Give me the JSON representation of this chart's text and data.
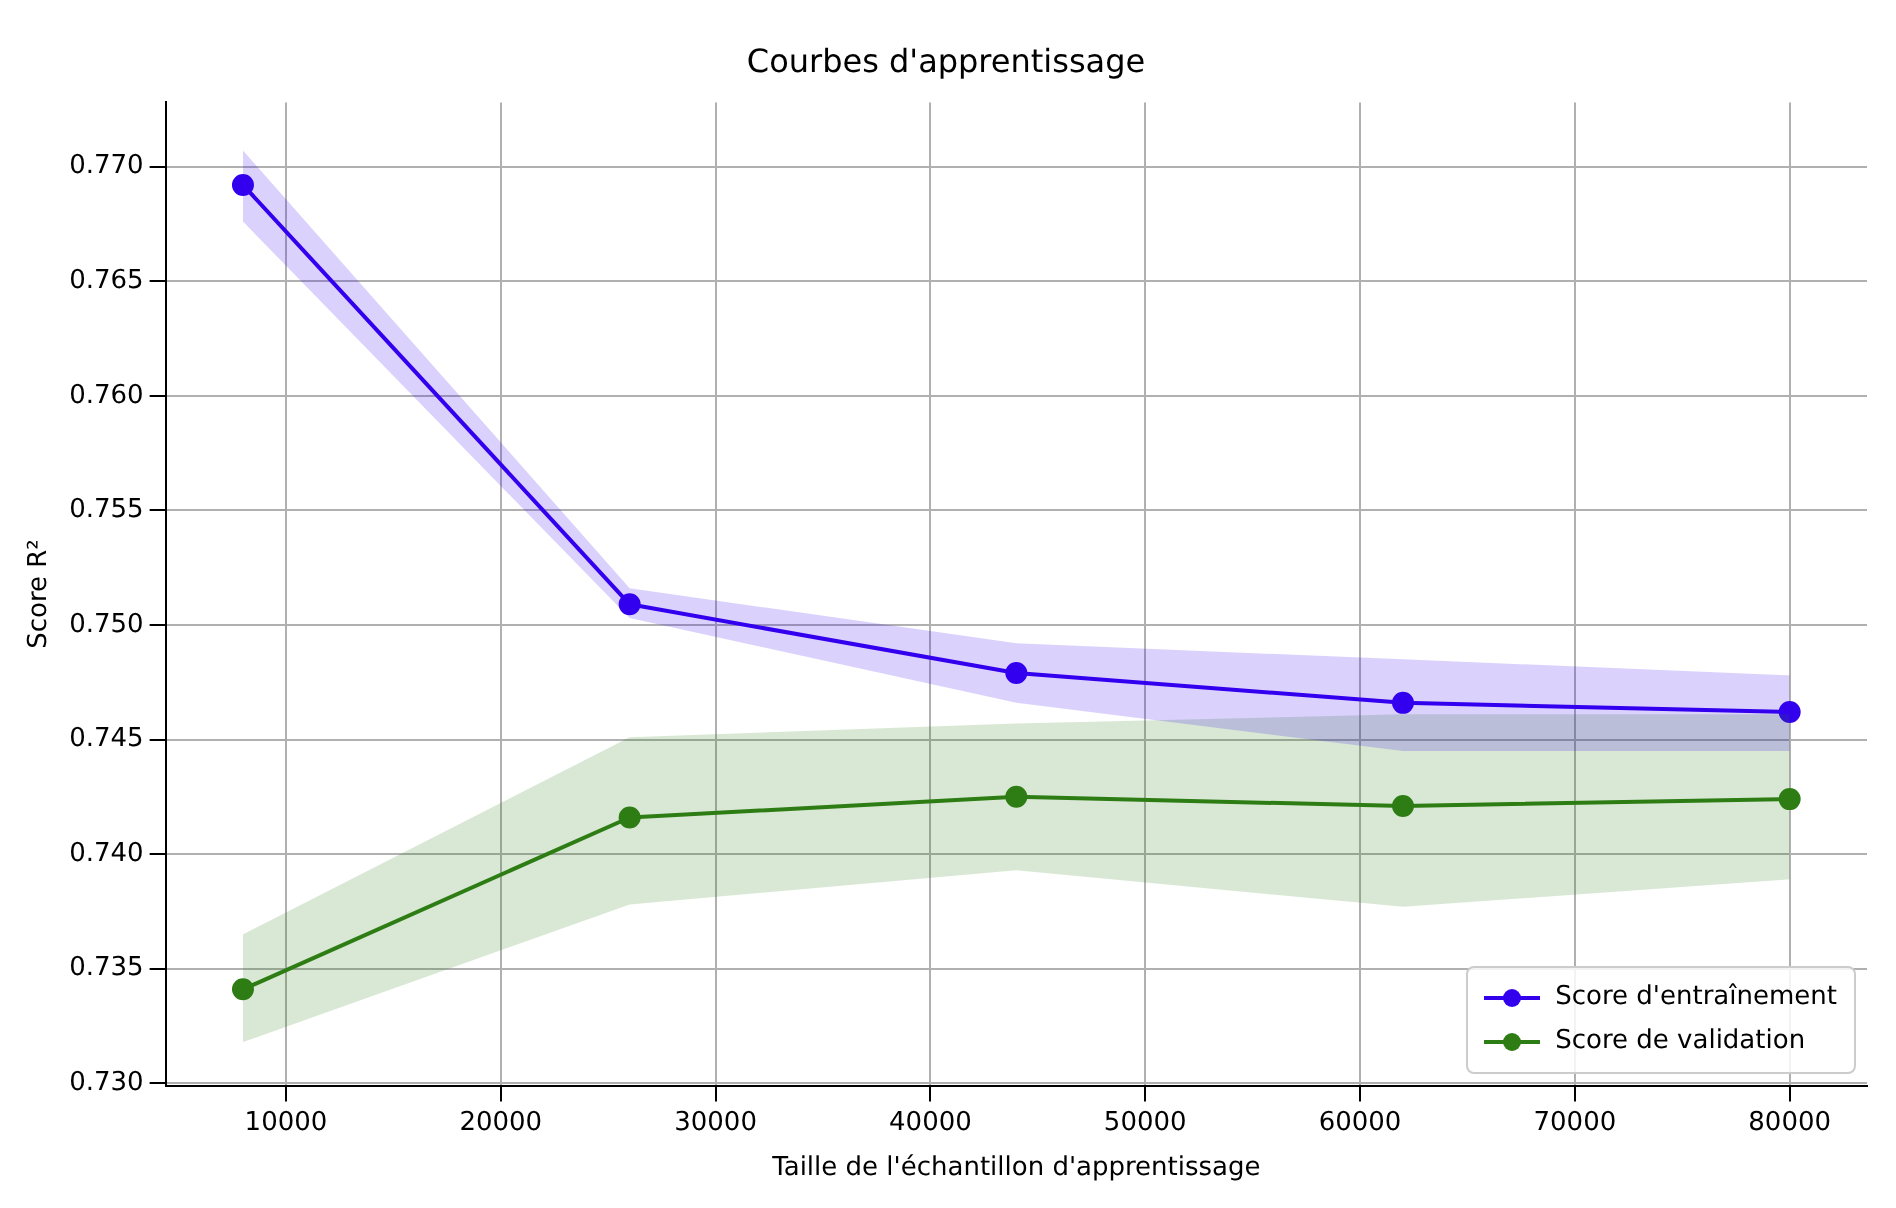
{
  "chart_data": {
    "type": "line",
    "title": "Courbes d'apprentissage",
    "xlabel": "Taille de l'échantillon d'apprentissage",
    "ylabel": "Score R²",
    "x": [
      8000,
      26000,
      44000,
      62000,
      80000
    ],
    "series": [
      {
        "name": "Score d'entraînement",
        "color": "#3300ee",
        "values": [
          0.7692,
          0.7509,
          0.7479,
          0.7466,
          0.7462
        ],
        "lower": [
          0.7676,
          0.7503,
          0.7466,
          0.7445,
          0.7445
        ],
        "upper": [
          0.7707,
          0.7516,
          0.7492,
          0.7485,
          0.7478
        ]
      },
      {
        "name": "Score de validation",
        "color": "#2e7d14",
        "values": [
          0.7341,
          0.7416,
          0.7425,
          0.7421,
          0.7424
        ],
        "lower": [
          0.7318,
          0.7378,
          0.7393,
          0.7377,
          0.7389
        ],
        "upper": [
          0.7365,
          0.7451,
          0.7457,
          0.7461,
          0.7461
        ]
      }
    ],
    "xlim": [
      4400,
      83600
    ],
    "xticks": [
      10000,
      20000,
      30000,
      40000,
      50000,
      60000,
      70000,
      80000
    ],
    "ylim": [
      0.7299,
      0.7728
    ],
    "yticks": [
      {
        "value": 0.73,
        "label": "0.730"
      },
      {
        "value": 0.735,
        "label": "0.735"
      },
      {
        "value": 0.74,
        "label": "0.740"
      },
      {
        "value": 0.745,
        "label": "0.745"
      },
      {
        "value": 0.75,
        "label": "0.750"
      },
      {
        "value": 0.755,
        "label": "0.755"
      },
      {
        "value": 0.76,
        "label": "0.760"
      },
      {
        "value": 0.765,
        "label": "0.765"
      },
      {
        "value": 0.77,
        "label": "0.770"
      }
    ],
    "grid": true,
    "legend": "bottom right",
    "marker": "circle",
    "line_style": "solid"
  }
}
